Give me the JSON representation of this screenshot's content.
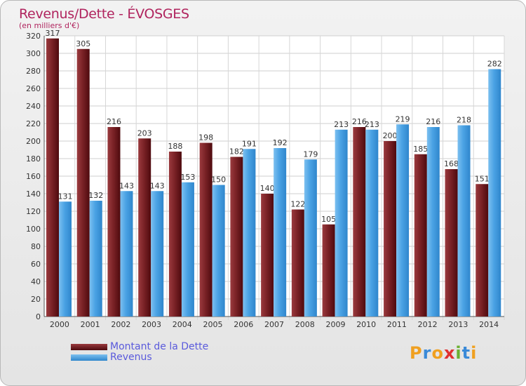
{
  "chart_data": {
    "type": "bar",
    "title": "Revenus/Dette - ÉVOSGES",
    "subtitle": "(en milliers d'€)",
    "categories": [
      "2000",
      "2001",
      "2002",
      "2003",
      "2004",
      "2005",
      "2006",
      "2007",
      "2008",
      "2009",
      "2010",
      "2011",
      "2012",
      "2013",
      "2014"
    ],
    "series": [
      {
        "name": "Montant de la Dette",
        "color": "#6e1519",
        "values": [
          317,
          305,
          216,
          203,
          188,
          198,
          182,
          140,
          122,
          105,
          216,
          200,
          185,
          168,
          151
        ]
      },
      {
        "name": "Revenus",
        "color": "#4a9fe0",
        "values": [
          131,
          132,
          143,
          143,
          153,
          150,
          191,
          192,
          179,
          213,
          213,
          219,
          216,
          218,
          282
        ]
      }
    ],
    "ylim": [
      0,
      320
    ],
    "yticks": [
      0,
      20,
      40,
      60,
      80,
      100,
      120,
      140,
      160,
      180,
      200,
      220,
      240,
      260,
      280,
      300,
      320
    ],
    "grid": true,
    "legend_placement": "bottom-left"
  },
  "logo": {
    "letters": [
      "P",
      "r",
      "o",
      "x",
      "i",
      "t",
      "i"
    ],
    "colors": [
      "#f0a020",
      "#3a8ad8",
      "#f0a020",
      "#e03030",
      "#6ab030",
      "#3a8ad8",
      "#f0a020"
    ]
  }
}
